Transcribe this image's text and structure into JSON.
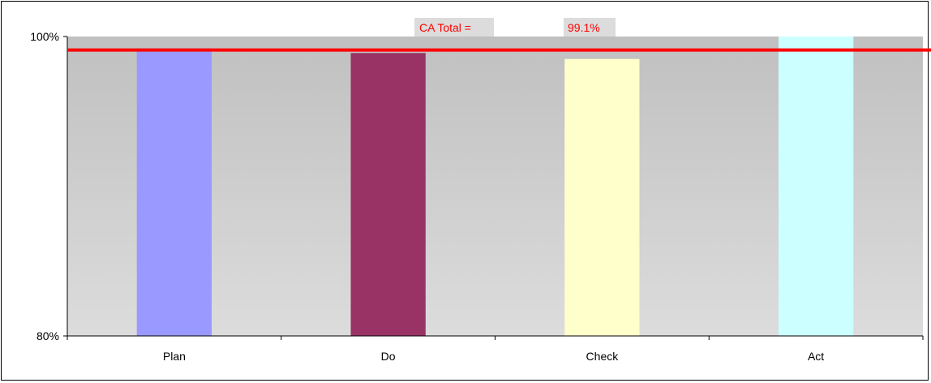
{
  "chart_data": {
    "type": "bar",
    "categories": [
      "Plan",
      "Do",
      "Check",
      "Act"
    ],
    "values": [
      99.2,
      98.9,
      98.5,
      100.0
    ],
    "bar_colors": [
      "#9999ff",
      "#993366",
      "#ffffcc",
      "#ccffff"
    ],
    "ylim": [
      80,
      100
    ],
    "ytick_labels": [
      "100%",
      "80%"
    ],
    "ytick_values": [
      100,
      80
    ],
    "grid": false,
    "reference_line": {
      "value": 99.1,
      "color": "#ff0000"
    },
    "annotation": {
      "label": "CA Total =",
      "value_text": "99.1%",
      "color": "#ff0000"
    },
    "plot_background": {
      "top": "#c0c0c0",
      "bottom": "#dcdcdc"
    }
  }
}
